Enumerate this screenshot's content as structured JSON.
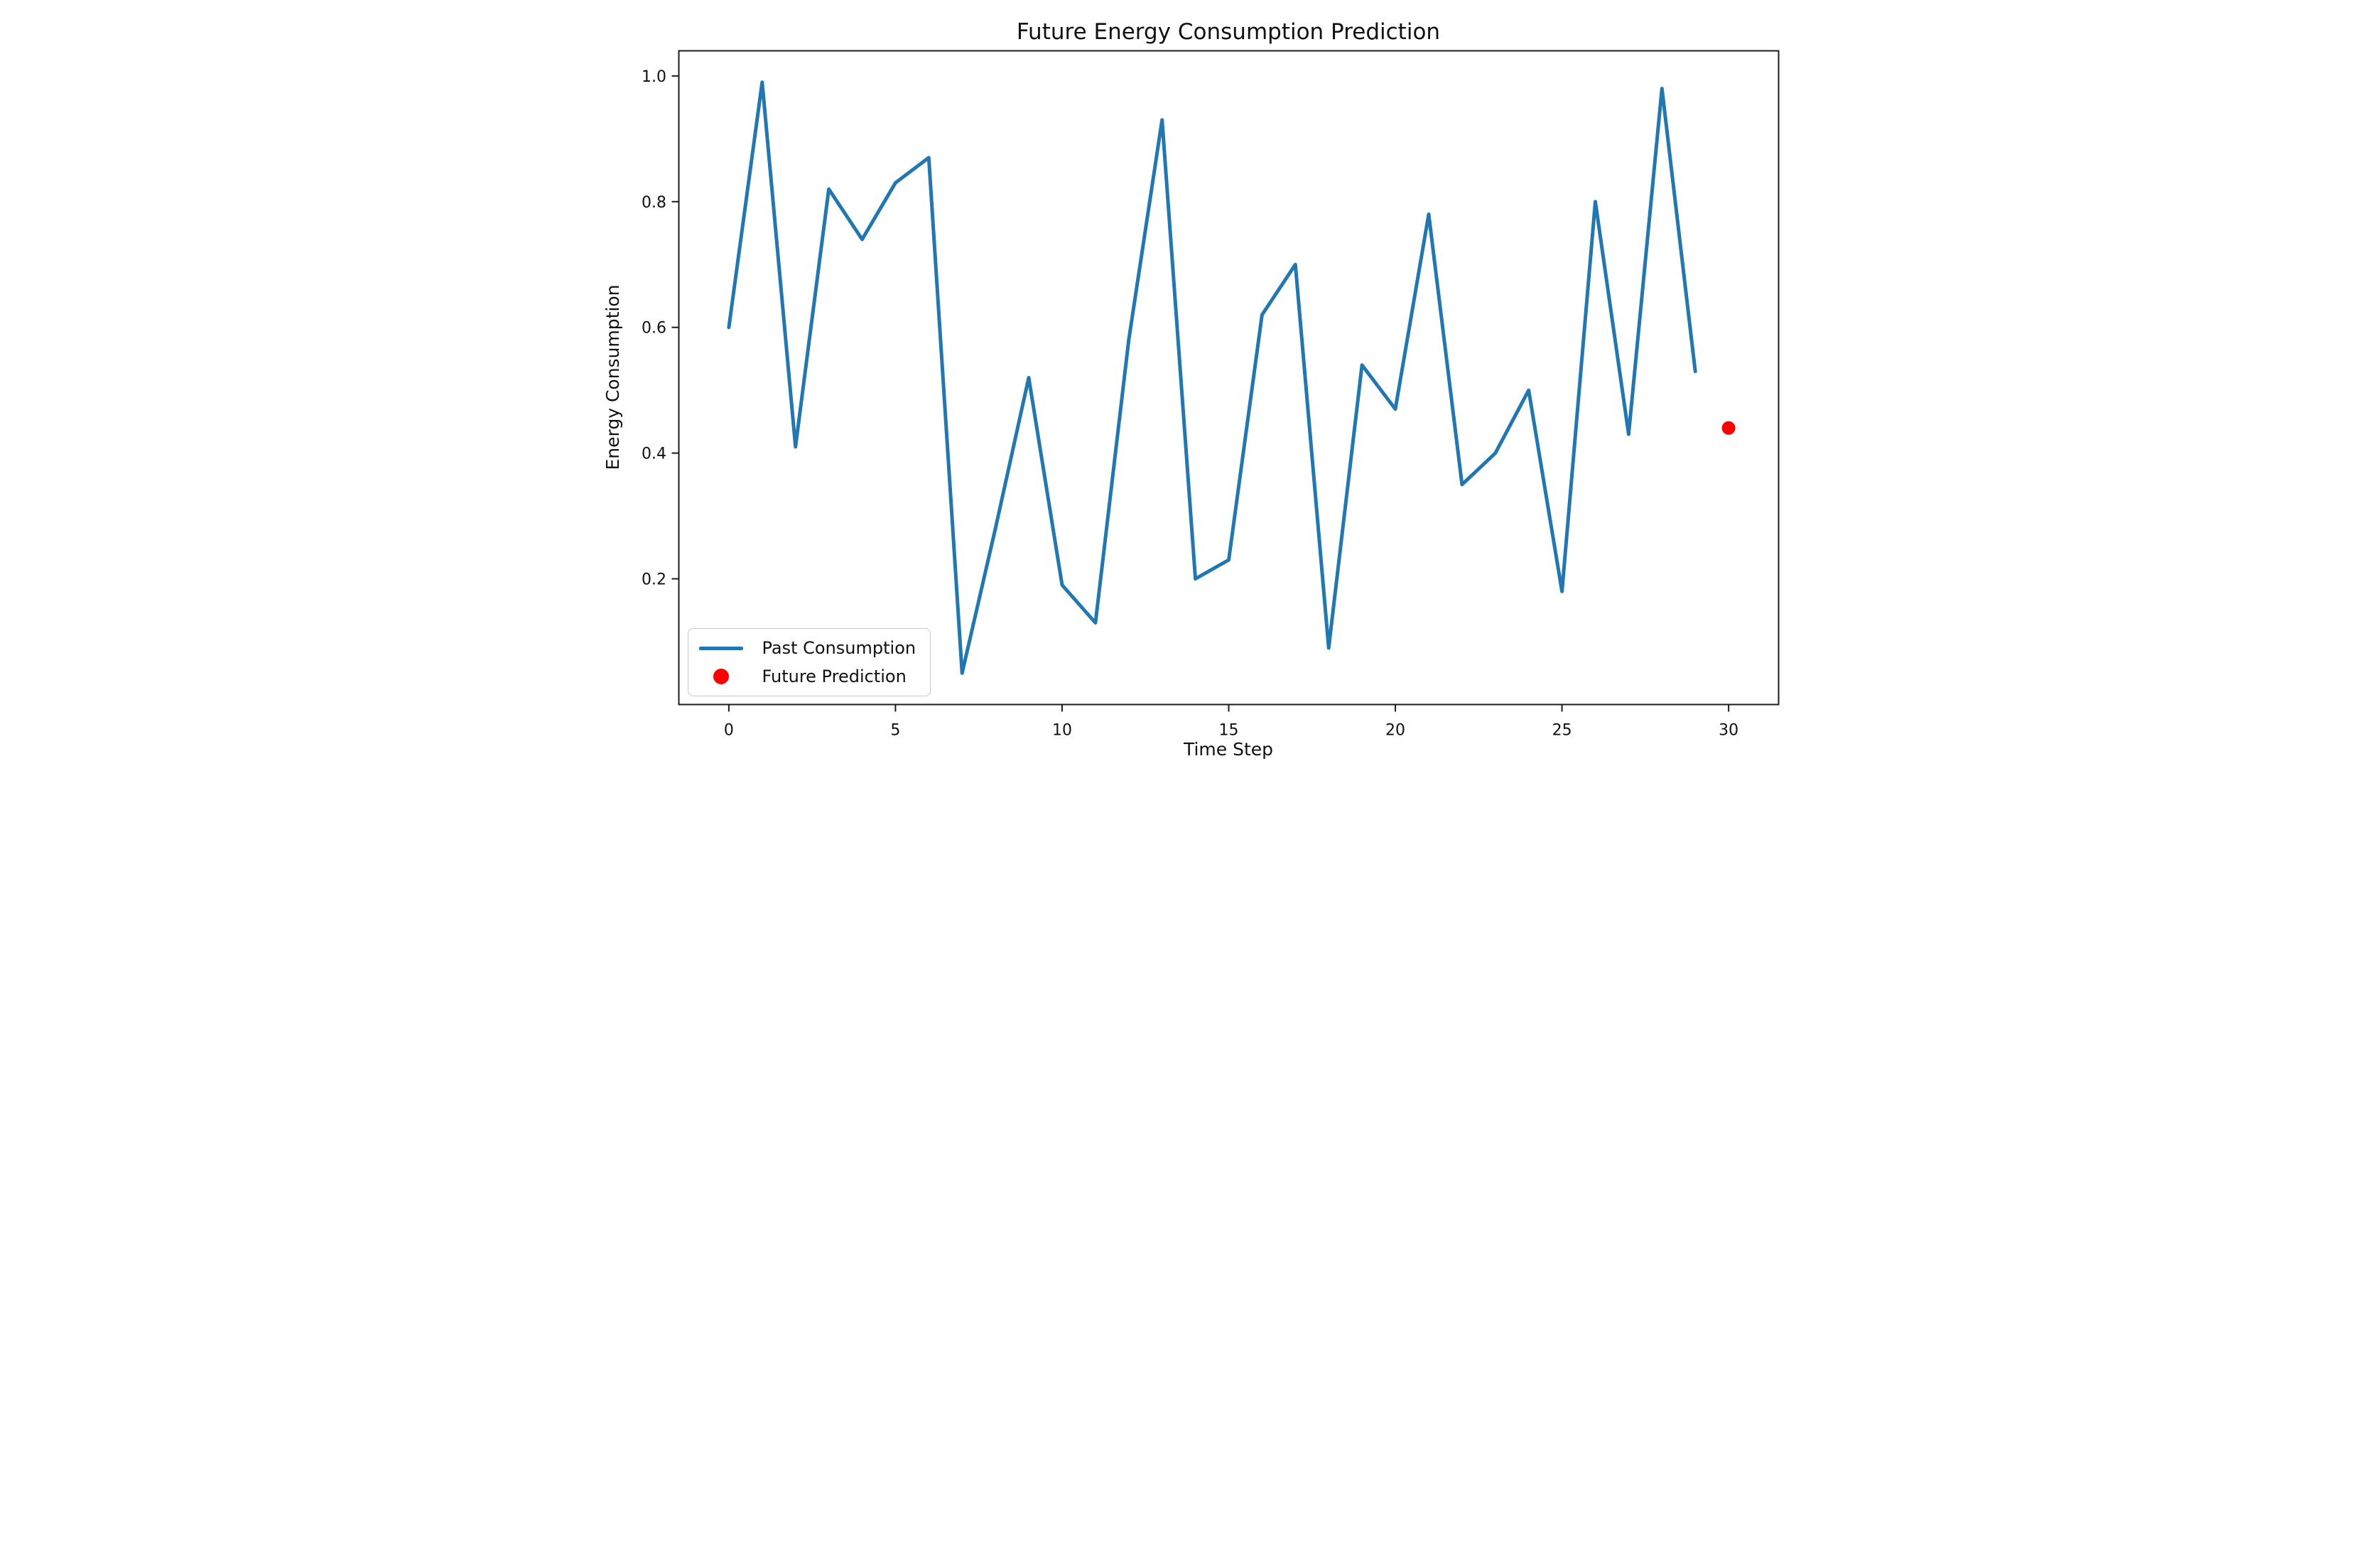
{
  "chart_data": {
    "type": "line",
    "title": "Future Energy Consumption Prediction",
    "xlabel": "Time Step",
    "ylabel": "Energy Consumption",
    "xlim": [
      -1.5,
      31.5
    ],
    "ylim": [
      0,
      1.04
    ],
    "x_ticks": [
      0,
      5,
      10,
      15,
      20,
      25,
      30
    ],
    "y_ticks": [
      0.2,
      0.4,
      0.6,
      0.8,
      1.0
    ],
    "grid": false,
    "legend_position": "lower left",
    "axis_color": "#1c1c1c",
    "series": [
      {
        "name": "Past Consumption",
        "type": "line",
        "color": "#1f77b4",
        "x": [
          0,
          1,
          2,
          3,
          4,
          5,
          6,
          7,
          8,
          9,
          10,
          11,
          12,
          13,
          14,
          15,
          16,
          17,
          18,
          19,
          20,
          21,
          22,
          23,
          24,
          25,
          26,
          27,
          28,
          29
        ],
        "values": [
          0.6,
          0.99,
          0.41,
          0.82,
          0.74,
          0.83,
          0.87,
          0.05,
          0.28,
          0.52,
          0.19,
          0.13,
          0.58,
          0.93,
          0.2,
          0.23,
          0.62,
          0.7,
          0.09,
          0.54,
          0.47,
          0.78,
          0.35,
          0.4,
          0.5,
          0.18,
          0.8,
          0.43,
          0.98,
          0.53
        ]
      },
      {
        "name": "Future Prediction",
        "type": "scatter",
        "color": "#ff0000",
        "x": [
          30
        ],
        "values": [
          0.44
        ]
      }
    ]
  }
}
